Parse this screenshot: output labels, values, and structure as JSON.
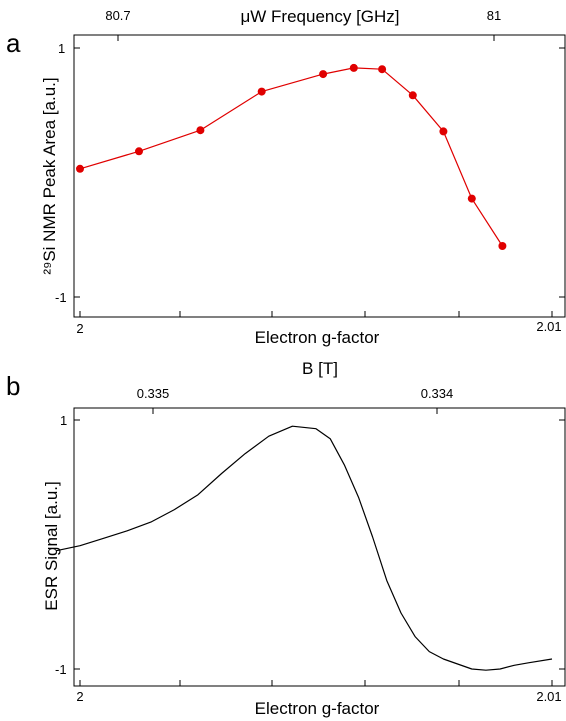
{
  "colors": {
    "panel_a_series": "#e00000",
    "panel_b_series": "#000000",
    "axes": "#000000"
  },
  "chart_data": [
    {
      "type": "line",
      "panel_letter": "a",
      "title": "",
      "xlabel": "Electron g-factor",
      "xlim": [
        1.9995,
        2.01
      ],
      "xticks": [
        "2",
        "2.01"
      ],
      "x_top_label": "μW Frequency [GHz]",
      "x_top_ticks": [
        {
          "label": "80.7",
          "g": 2.00185
        },
        {
          "label": "81",
          "g": 2.009
        }
      ],
      "ylabel": "²⁹Si NMR Peak Area [a.u.]",
      "ylim": [
        -1.1,
        1.1
      ],
      "yticks": [
        "1",
        "-1"
      ],
      "grid": false,
      "series": [
        {
          "x": [
            2.0,
            2.00125,
            2.00255,
            2.00385,
            2.00515,
            2.0058,
            2.0064,
            2.00705,
            2.0077,
            2.0083,
            2.00895
          ],
          "y": [
            0.03,
            0.17,
            0.34,
            0.65,
            0.79,
            0.84,
            0.83,
            0.62,
            0.33,
            -0.21,
            -0.59
          ]
        }
      ]
    },
    {
      "type": "line",
      "panel_letter": "b",
      "title": "",
      "xlabel": "Electron g-factor",
      "xlim": [
        1.9995,
        2.01
      ],
      "xticks": [
        "2",
        "2.01"
      ],
      "x_top_label": "B [T]",
      "x_top_ticks": [
        {
          "label": "0.335",
          "g": 2.0016
        },
        {
          "label": "0.334",
          "g": 2.0076
        }
      ],
      "ylabel": "ESR Signal [a.u.]",
      "ylim": [
        -1.1,
        1.1
      ],
      "yticks": [
        "1",
        "-1"
      ],
      "grid": false,
      "series": [
        {
          "x": [
            1.9995,
            2.0,
            2.0005,
            2.001,
            2.0015,
            2.002,
            2.0025,
            2.003,
            2.0035,
            2.004,
            2.0045,
            2.005,
            2.0053,
            2.0056,
            2.0059,
            2.0062,
            2.0065,
            2.0068,
            2.0071,
            2.0074,
            2.0077,
            2.008,
            2.0083,
            2.0086,
            2.0089,
            2.0092,
            2.0095,
            2.01
          ],
          "y": [
            -0.05,
            -0.01,
            0.05,
            0.11,
            0.18,
            0.28,
            0.4,
            0.57,
            0.73,
            0.87,
            0.95,
            0.93,
            0.85,
            0.64,
            0.38,
            0.06,
            -0.29,
            -0.55,
            -0.74,
            -0.86,
            -0.92,
            -0.96,
            -1.0,
            -1.01,
            -1.0,
            -0.97,
            -0.95,
            -0.92
          ]
        }
      ]
    }
  ]
}
